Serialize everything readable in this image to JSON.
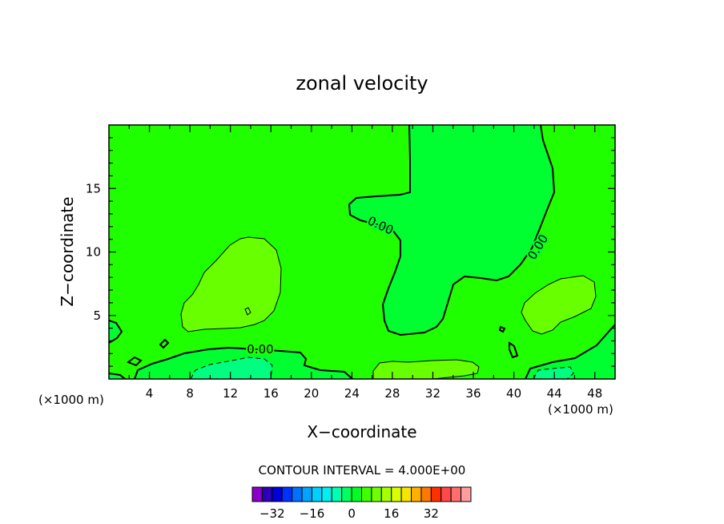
{
  "chart_data": {
    "type": "heatmap",
    "title": "zonal velocity",
    "xlabel": "X−coordinate",
    "ylabel": "Z−coordinate",
    "x_unit_left": "(×1000 m)",
    "x_unit_right": "(×1000 m)",
    "xlim": [
      0,
      50
    ],
    "ylim": [
      0,
      20
    ],
    "x_ticks": [
      4,
      8,
      12,
      16,
      20,
      24,
      28,
      32,
      36,
      40,
      44,
      48
    ],
    "y_ticks": [
      5,
      10,
      15
    ],
    "contour_labels": [
      "0.00",
      "0.00",
      "0.00"
    ],
    "contour_interval_text": "CONTOUR INTERVAL = 4.000E+00",
    "colorbar": {
      "labels": [
        "−32",
        "−16",
        "0",
        "16",
        "32"
      ],
      "label_values": [
        -32,
        -16,
        0,
        16,
        32
      ],
      "colors": [
        "#8a00c8",
        "#2c00b4",
        "#0000d8",
        "#0032ff",
        "#0070ff",
        "#00a4ff",
        "#00d0ff",
        "#00f0f0",
        "#00ffb0",
        "#00ff60",
        "#00ff20",
        "#40ff00",
        "#70ff00",
        "#a8ff00",
        "#d8ff00",
        "#f8e400",
        "#ffb000",
        "#ff7800",
        "#ff3000",
        "#ff4848",
        "#ff6e6e",
        "#ff9e9e"
      ]
    },
    "field_colors": {
      "background": "#20ff00",
      "slightly_positive": "#68ff00",
      "slightly_negative": "#00ff30",
      "more_negative": "#00ff80"
    }
  }
}
